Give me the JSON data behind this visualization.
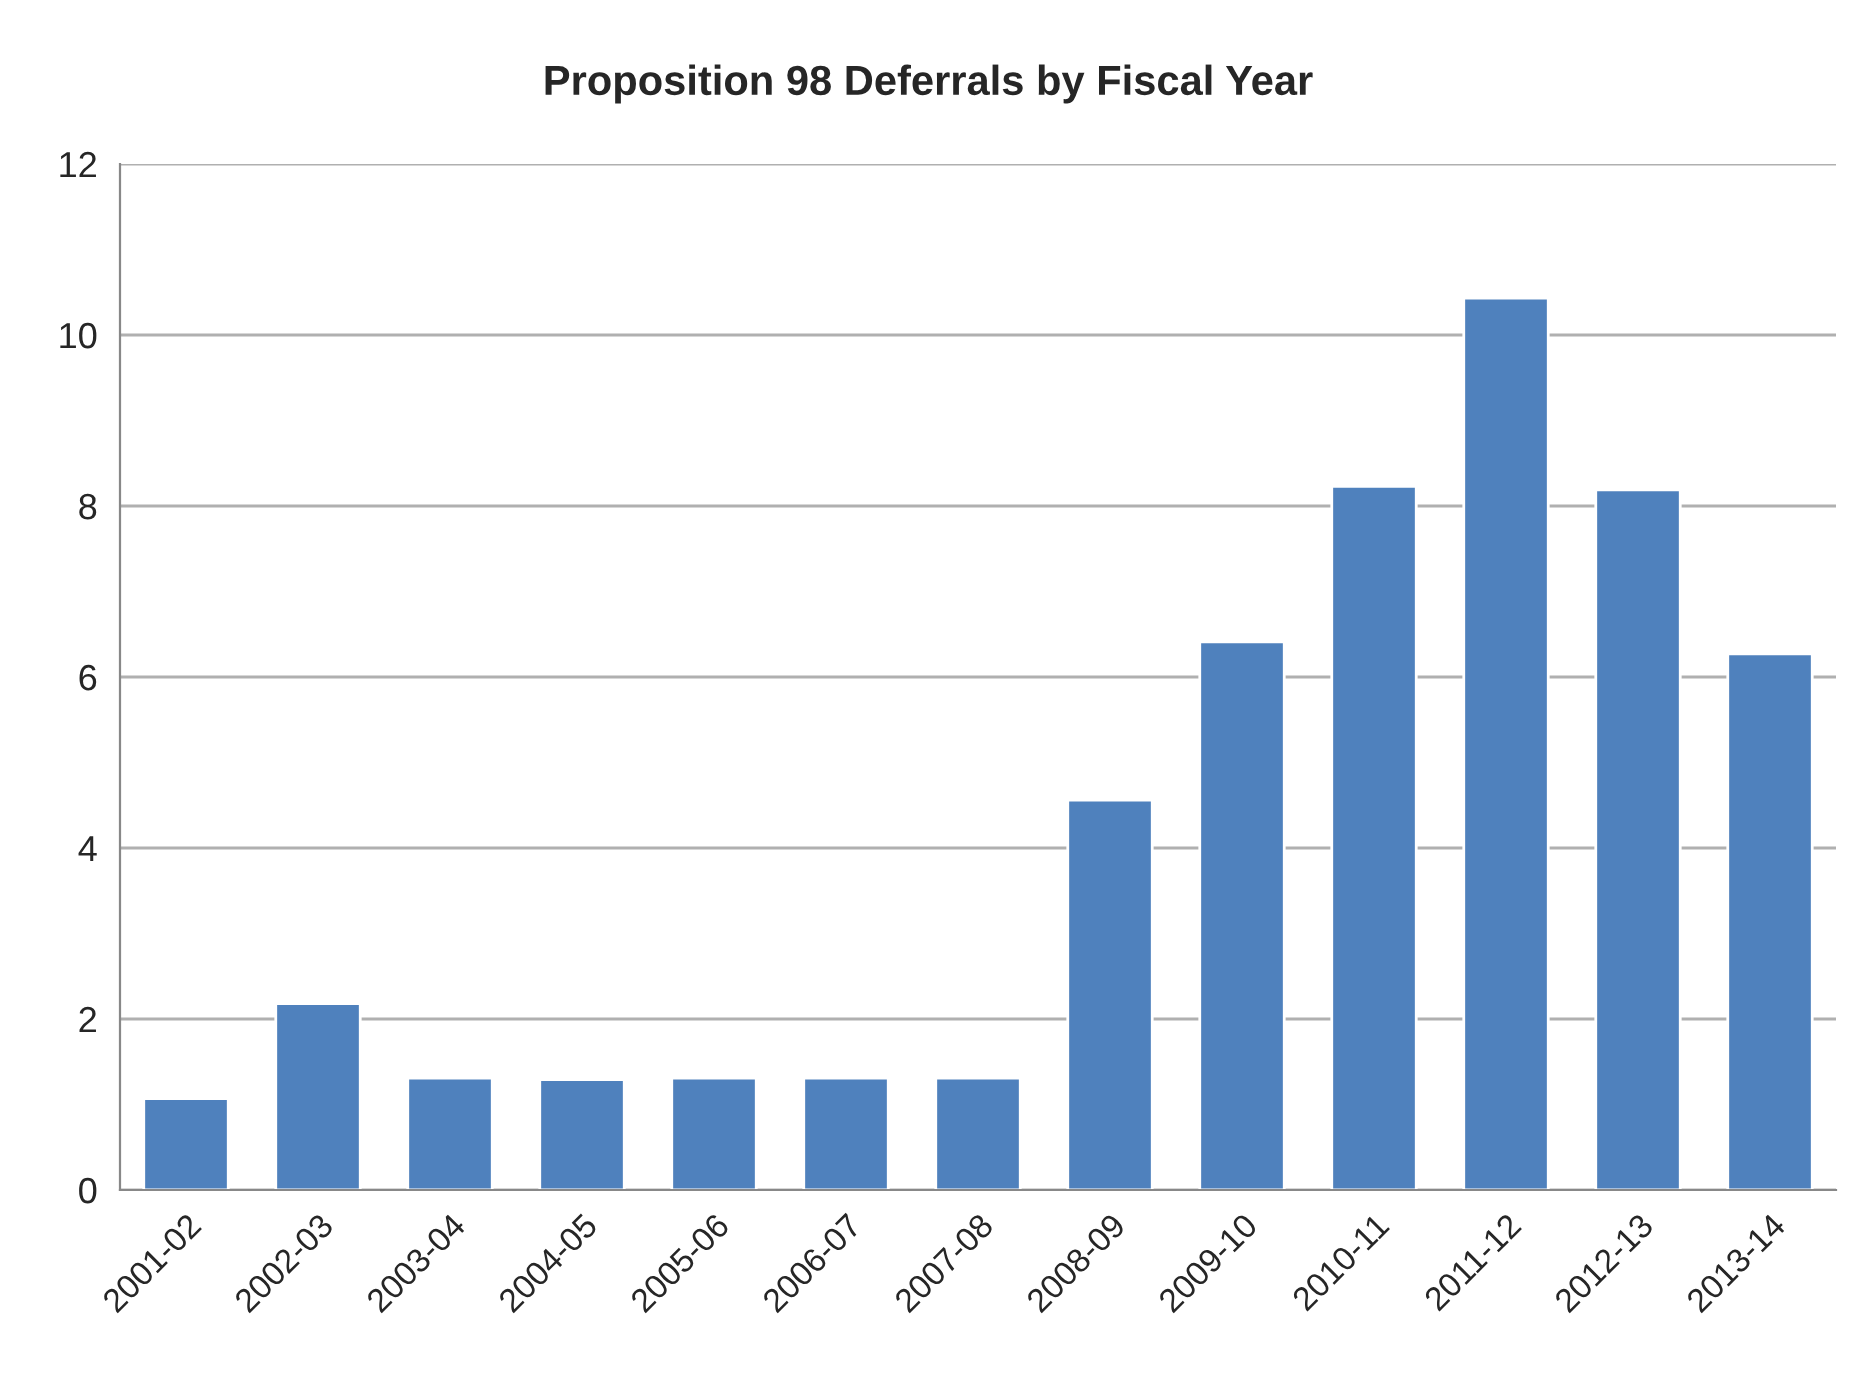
{
  "chart_data": {
    "type": "bar",
    "title": "Proposition 98 Deferrals by Fiscal Year",
    "categories": [
      "2001-02",
      "2002-03",
      "2003-04",
      "2004-05",
      "2005-06",
      "2006-07",
      "2007-08",
      "2008-09",
      "2009-10",
      "2010-11",
      "2011-12",
      "2012-13",
      "2013-14"
    ],
    "values": [
      1.07,
      2.18,
      1.31,
      1.29,
      1.31,
      1.31,
      1.31,
      4.56,
      6.41,
      8.23,
      10.43,
      8.19,
      6.27
    ],
    "color": "#4f81bd",
    "ylim": [
      0,
      12
    ],
    "yticks": [
      0,
      2,
      4,
      6,
      8,
      10,
      12
    ],
    "grid": "y"
  }
}
